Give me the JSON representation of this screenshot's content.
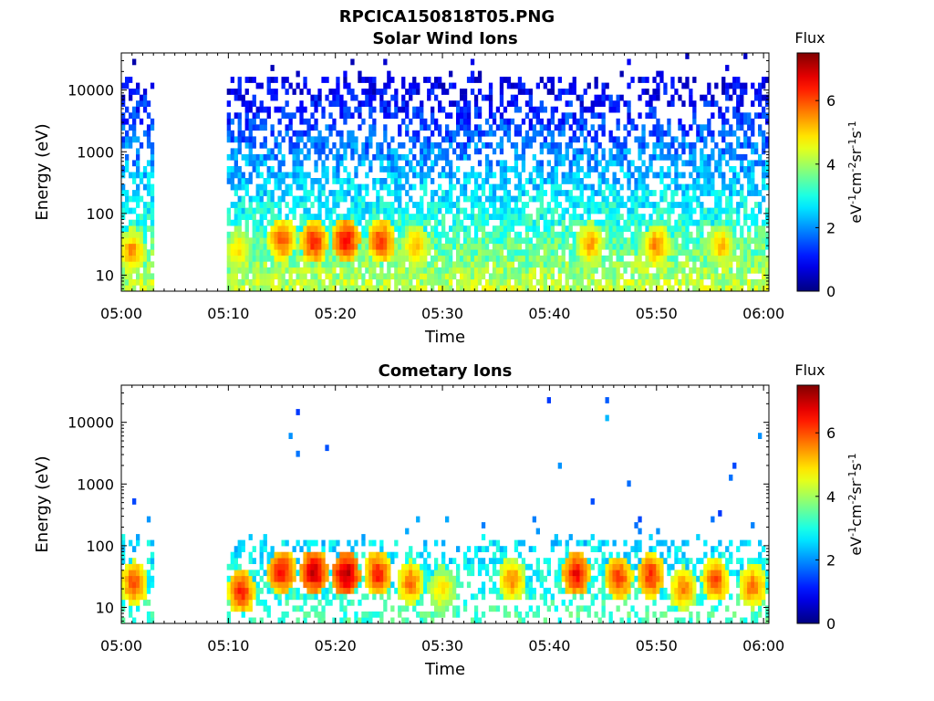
{
  "figure": {
    "title": "RPCICA150818T05.PNG",
    "background": "#ffffff"
  },
  "chart_data": [
    {
      "type": "heatmap",
      "title": "Solar Wind Ions",
      "xlabel": "Time",
      "ylabel": "Energy (eV)",
      "x_ticks": [
        "05:00",
        "05:10",
        "05:20",
        "05:30",
        "05:40",
        "05:50",
        "06:00"
      ],
      "x_range_minutes": [
        0,
        60.5
      ],
      "y_scale": "log",
      "y_ticks": [
        10,
        100,
        1000,
        10000
      ],
      "y_tick_labels": [
        "10",
        "100",
        "1000",
        "10000"
      ],
      "y_range": [
        5.5,
        40000
      ],
      "data_gap_minutes": [
        3,
        9.7
      ],
      "colorbar": {
        "label_top": "Flux",
        "label_side": "eV-1cm-2sr-1s-1",
        "range": [
          0,
          7.5
        ],
        "ticks": [
          0,
          2,
          4,
          6
        ],
        "colormap": "jet"
      },
      "high_flux_events": [
        {
          "t": 1.0,
          "e": 25,
          "v": 5.5
        },
        {
          "t": 11.0,
          "e": 25,
          "v": 5.0
        },
        {
          "t": 15.0,
          "e": 38,
          "v": 6.0
        },
        {
          "t": 18.0,
          "e": 35,
          "v": 6.3
        },
        {
          "t": 21.0,
          "e": 38,
          "v": 6.6
        },
        {
          "t": 24.3,
          "e": 35,
          "v": 6.2
        },
        {
          "t": 27.5,
          "e": 30,
          "v": 5.3
        },
        {
          "t": 43.8,
          "e": 32,
          "v": 5.4
        },
        {
          "t": 50.0,
          "e": 30,
          "v": 5.6
        },
        {
          "t": 56.0,
          "e": 30,
          "v": 5.2
        }
      ]
    },
    {
      "type": "heatmap",
      "title": "Cometary Ions",
      "xlabel": "Time",
      "ylabel": "Energy (eV)",
      "x_ticks": [
        "05:00",
        "05:10",
        "05:20",
        "05:30",
        "05:40",
        "05:50",
        "06:00"
      ],
      "x_range_minutes": [
        0,
        60.5
      ],
      "y_scale": "log",
      "y_ticks": [
        10,
        100,
        1000,
        10000
      ],
      "y_tick_labels": [
        "10",
        "100",
        "1000",
        "10000"
      ],
      "y_range": [
        5.5,
        40000
      ],
      "data_gap_minutes": [
        3,
        9.7
      ],
      "colorbar": {
        "label_top": "Flux",
        "label_side": "eV-1cm-2sr-1s-1",
        "range": [
          0,
          7.5
        ],
        "ticks": [
          0,
          2,
          4,
          6
        ],
        "colormap": "jet"
      },
      "high_flux_events": [
        {
          "t": 1.2,
          "e": 25,
          "v": 6.0
        },
        {
          "t": 11.2,
          "e": 18,
          "v": 6.3
        },
        {
          "t": 15.0,
          "e": 38,
          "v": 6.6
        },
        {
          "t": 18.0,
          "e": 38,
          "v": 7.0
        },
        {
          "t": 21.0,
          "e": 35,
          "v": 7.1
        },
        {
          "t": 24.0,
          "e": 35,
          "v": 6.4
        },
        {
          "t": 27.0,
          "e": 25,
          "v": 5.8
        },
        {
          "t": 30.0,
          "e": 20,
          "v": 5.0
        },
        {
          "t": 36.5,
          "e": 28,
          "v": 5.6
        },
        {
          "t": 42.5,
          "e": 35,
          "v": 6.6
        },
        {
          "t": 46.5,
          "e": 30,
          "v": 6.2
        },
        {
          "t": 49.5,
          "e": 33,
          "v": 6.3
        },
        {
          "t": 52.5,
          "e": 20,
          "v": 5.6
        },
        {
          "t": 55.5,
          "e": 28,
          "v": 6.0
        },
        {
          "t": 59.0,
          "e": 22,
          "v": 5.8
        }
      ]
    }
  ]
}
